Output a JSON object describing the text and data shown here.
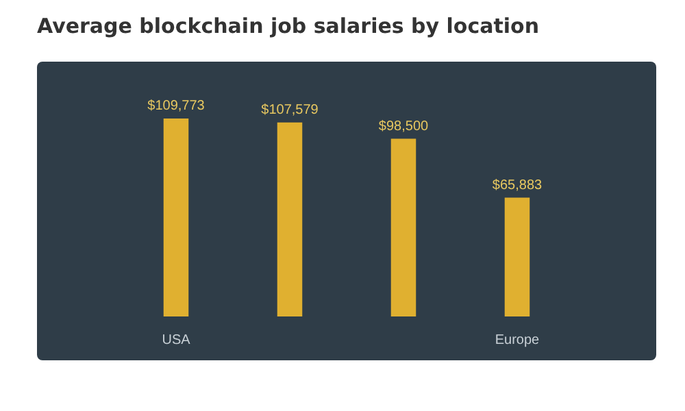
{
  "chart_data": {
    "type": "bar",
    "title": "Average blockchain job salaries by location",
    "categories": [
      "USA",
      null,
      null,
      "Europe"
    ],
    "values": [
      109773,
      107579,
      98500,
      65883
    ],
    "value_labels": [
      "$109,773",
      "$107,579",
      "$98,500",
      "$65,883"
    ],
    "color": "#e0b030",
    "grid": false,
    "legend": false
  }
}
